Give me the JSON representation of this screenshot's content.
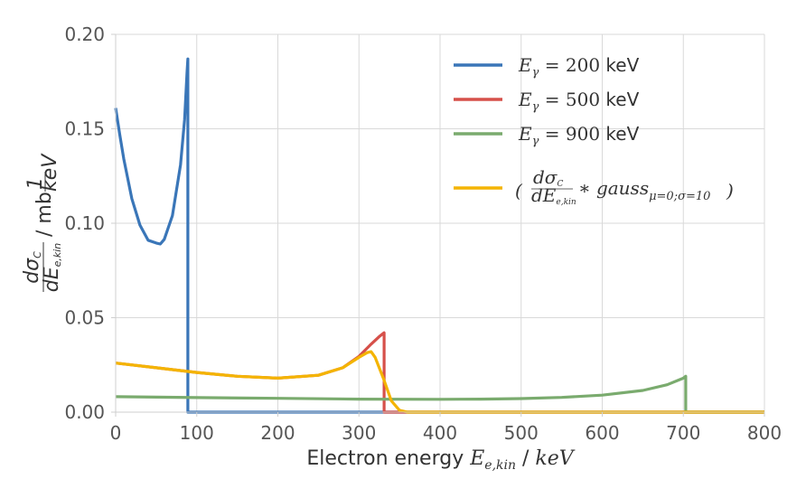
{
  "chart_data": {
    "type": "line",
    "xlabel": "Electron energy E_e,kin / keV",
    "ylabel": "dσ_C / dE_e,kin  /  mb/keV",
    "xlim": [
      0,
      800
    ],
    "ylim": [
      0,
      0.2
    ],
    "x_ticks": [
      "0",
      "100",
      "200",
      "300",
      "400",
      "500",
      "600",
      "700",
      "800"
    ],
    "y_ticks": [
      "0.00",
      "0.05",
      "0.10",
      "0.15",
      "0.20"
    ],
    "grid": true,
    "legend_position": "top-right",
    "series": [
      {
        "name": "Eγ = 200 keV",
        "color": "#3a76b8",
        "x": [
          0,
          5,
          10,
          20,
          30,
          40,
          50,
          55,
          60,
          70,
          80,
          85,
          88,
          89,
          89,
          100,
          800
        ],
        "y": [
          0.161,
          0.147,
          0.134,
          0.113,
          0.099,
          0.091,
          0.0895,
          0.089,
          0.0915,
          0.104,
          0.131,
          0.155,
          0.18,
          0.187,
          0,
          0,
          0
        ]
      },
      {
        "name": "Eγ = 500 keV",
        "color": "#d6504a",
        "x": [
          0,
          50,
          100,
          150,
          200,
          250,
          280,
          300,
          315,
          325,
          331,
          331,
          400,
          800
        ],
        "y": [
          0.026,
          0.0235,
          0.021,
          0.019,
          0.018,
          0.0195,
          0.0235,
          0.0295,
          0.036,
          0.04,
          0.042,
          0,
          0,
          0
        ]
      },
      {
        "name": "Eγ = 900 keV",
        "color": "#7aab6e",
        "x": [
          0,
          100,
          200,
          300,
          400,
          450,
          500,
          550,
          600,
          650,
          680,
          700,
          703,
          703,
          800
        ],
        "y": [
          0.0082,
          0.0077,
          0.0073,
          0.0069,
          0.0068,
          0.0069,
          0.0072,
          0.0078,
          0.009,
          0.0115,
          0.0145,
          0.018,
          0.019,
          0,
          0
        ]
      },
      {
        "name": "(dσ_C/dE_e,kin ∗ gauss_μ=0;σ=10)",
        "color": "#f4b400",
        "x": [
          0,
          50,
          100,
          150,
          200,
          250,
          280,
          300,
          310,
          315,
          320,
          330,
          340,
          350,
          360,
          800
        ],
        "y": [
          0.026,
          0.0235,
          0.021,
          0.019,
          0.018,
          0.0195,
          0.0235,
          0.029,
          0.0315,
          0.032,
          0.029,
          0.018,
          0.006,
          0.001,
          0,
          0
        ]
      }
    ]
  }
}
